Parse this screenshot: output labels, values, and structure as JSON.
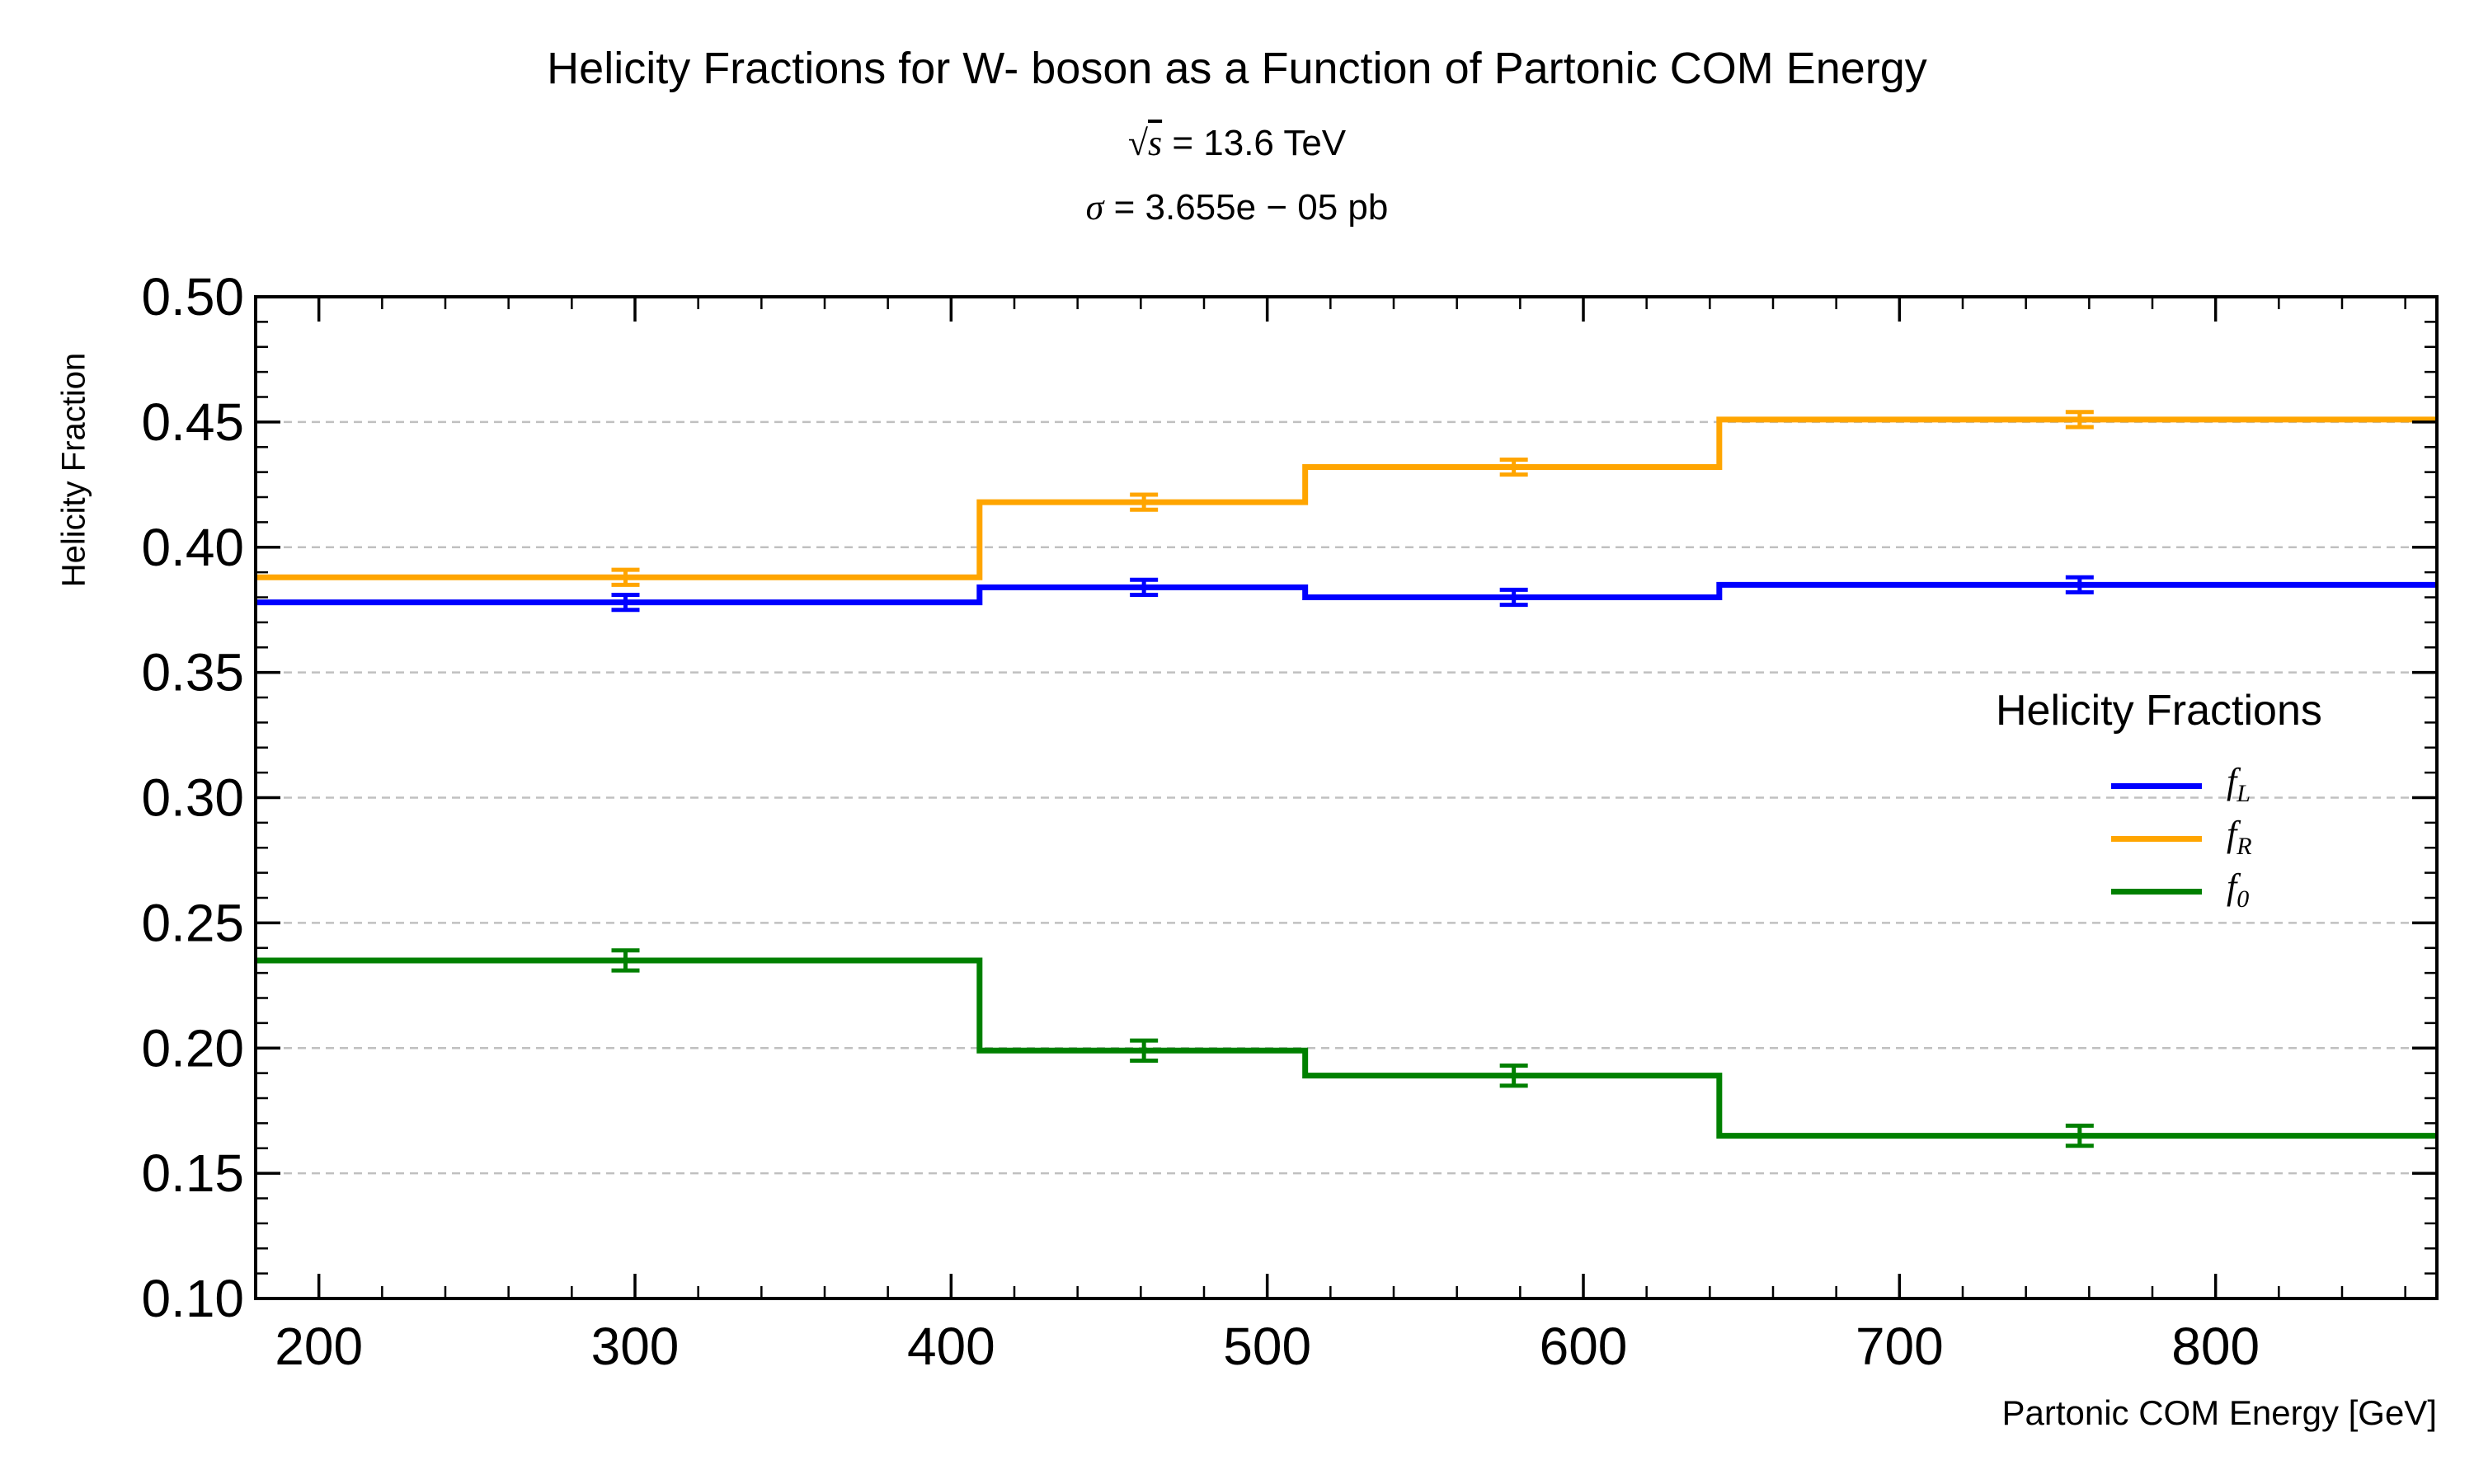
{
  "header": {
    "title": "Helicity Fractions for W- boson as a Function of Partonic COM Energy",
    "sqrt_s_symbol": "s",
    "sqrt_s_value": "= 13.6 TeV",
    "sigma_symbol": "σ",
    "sigma_value": "= 3.655e − 05 pb"
  },
  "chart_data": {
    "type": "line",
    "title": "Helicity Fractions for W- boson as a Function of Partonic COM Energy",
    "xlabel": "Partonic COM Energy [GeV]",
    "ylabel": "Helicity Fraction",
    "xlim": [
      180,
      870
    ],
    "ylim": [
      0.1,
      0.5
    ],
    "xticks": [
      "200",
      "300",
      "400",
      "500",
      "600",
      "700",
      "800"
    ],
    "yticks": [
      "0.10",
      "0.15",
      "0.20",
      "0.25",
      "0.30",
      "0.35",
      "0.40",
      "0.45",
      "0.50"
    ],
    "grid": "horizontal dashed",
    "legend_title": "Helicity Fractions",
    "legend_position": "right",
    "bin_edges": [
      180,
      409,
      512,
      643,
      870
    ],
    "bin_centers": [
      297,
      461,
      578,
      757
    ],
    "series": [
      {
        "name": "f_L",
        "label_main": "f",
        "label_sub": "L",
        "color": "#0000ff",
        "values": [
          0.378,
          0.384,
          0.38,
          0.385
        ],
        "errors": [
          0.003,
          0.003,
          0.003,
          0.003
        ]
      },
      {
        "name": "f_R",
        "label_main": "f",
        "label_sub": "R",
        "color": "#ffa500",
        "values": [
          0.388,
          0.418,
          0.432,
          0.451
        ],
        "errors": [
          0.003,
          0.003,
          0.003,
          0.003
        ]
      },
      {
        "name": "f_0",
        "label_main": "f",
        "label_sub": "0",
        "color": "#008000",
        "values": [
          0.235,
          0.199,
          0.189,
          0.165
        ],
        "errors": [
          0.004,
          0.004,
          0.004,
          0.004
        ]
      }
    ]
  }
}
